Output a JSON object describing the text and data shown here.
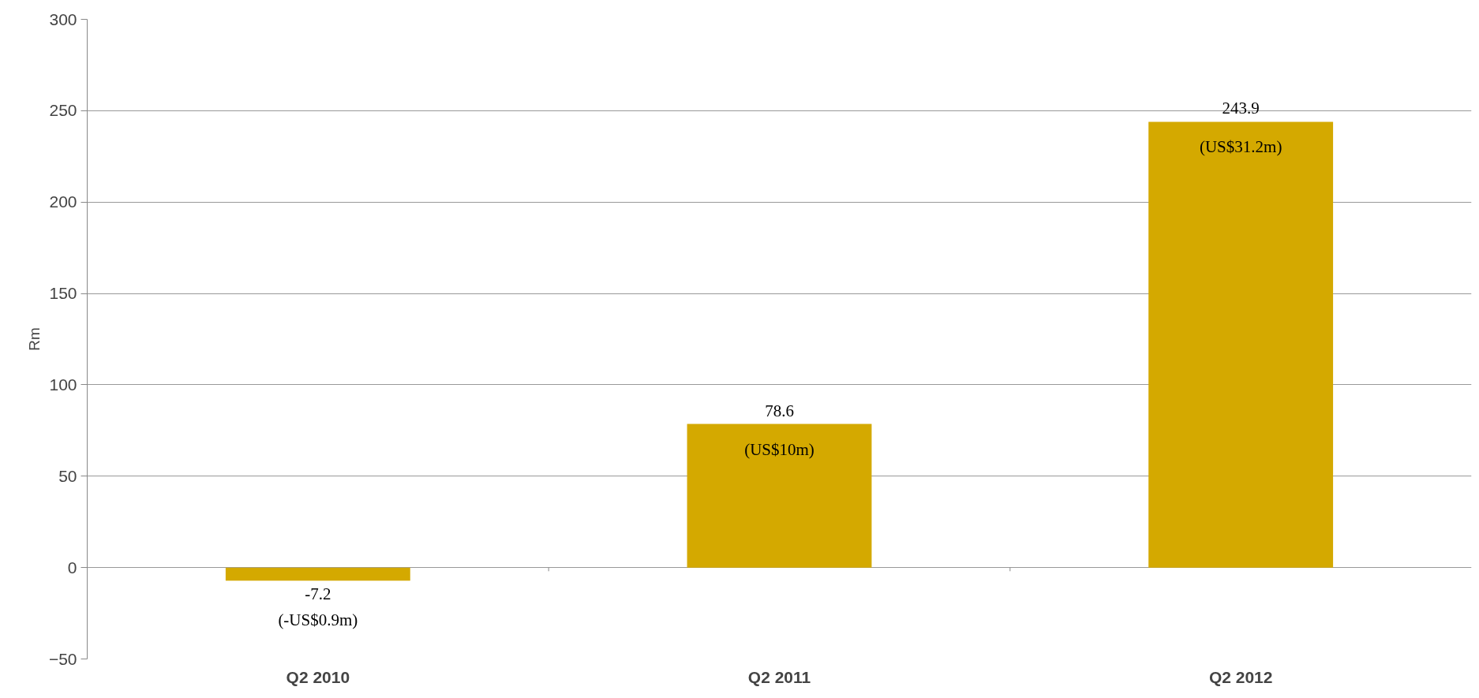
{
  "chart_data": {
    "type": "bar",
    "ylabel": "Rm",
    "categories": [
      "Q2 2010",
      "Q2 2011",
      "Q2 2012"
    ],
    "values": [
      -7.2,
      78.6,
      243.9
    ],
    "color": "#d4a900",
    "ylim": [
      -50,
      300
    ],
    "yticks": [
      -50,
      0,
      50,
      100,
      150,
      200,
      250,
      300
    ],
    "grid": "y",
    "data_labels": true,
    "annotations": [
      {
        "text": "(-US$0.9m)",
        "x": "Q2 2010",
        "y": -7.2
      },
      {
        "text": "(US$10m)",
        "x": "Q2 2011",
        "y": 78.6
      },
      {
        "text": "(US$31.2m)",
        "x": "Q2 2012",
        "y": 243.9
      }
    ]
  }
}
